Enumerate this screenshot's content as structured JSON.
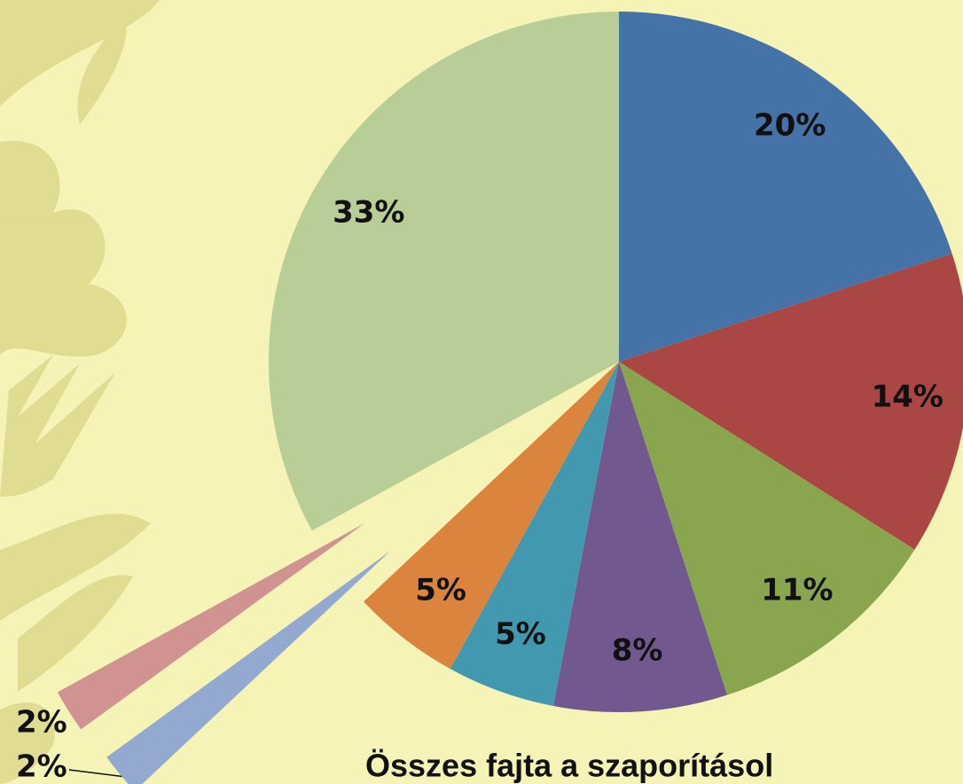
{
  "chart_data": {
    "type": "pie",
    "title": "Összes fajta a szaporításol",
    "values": [
      20,
      14,
      11,
      8,
      5,
      5,
      2,
      2,
      33
    ],
    "value_labels": [
      "20%",
      "14%",
      "11%",
      "8%",
      "5%",
      "5%",
      "2%",
      "2%",
      "33%"
    ],
    "colors": [
      "#4572a7",
      "#aa4643",
      "#89a54e",
      "#71588f",
      "#4198af",
      "#db843d",
      "#93a9cf",
      "#d19392",
      "#b9cd96"
    ]
  }
}
